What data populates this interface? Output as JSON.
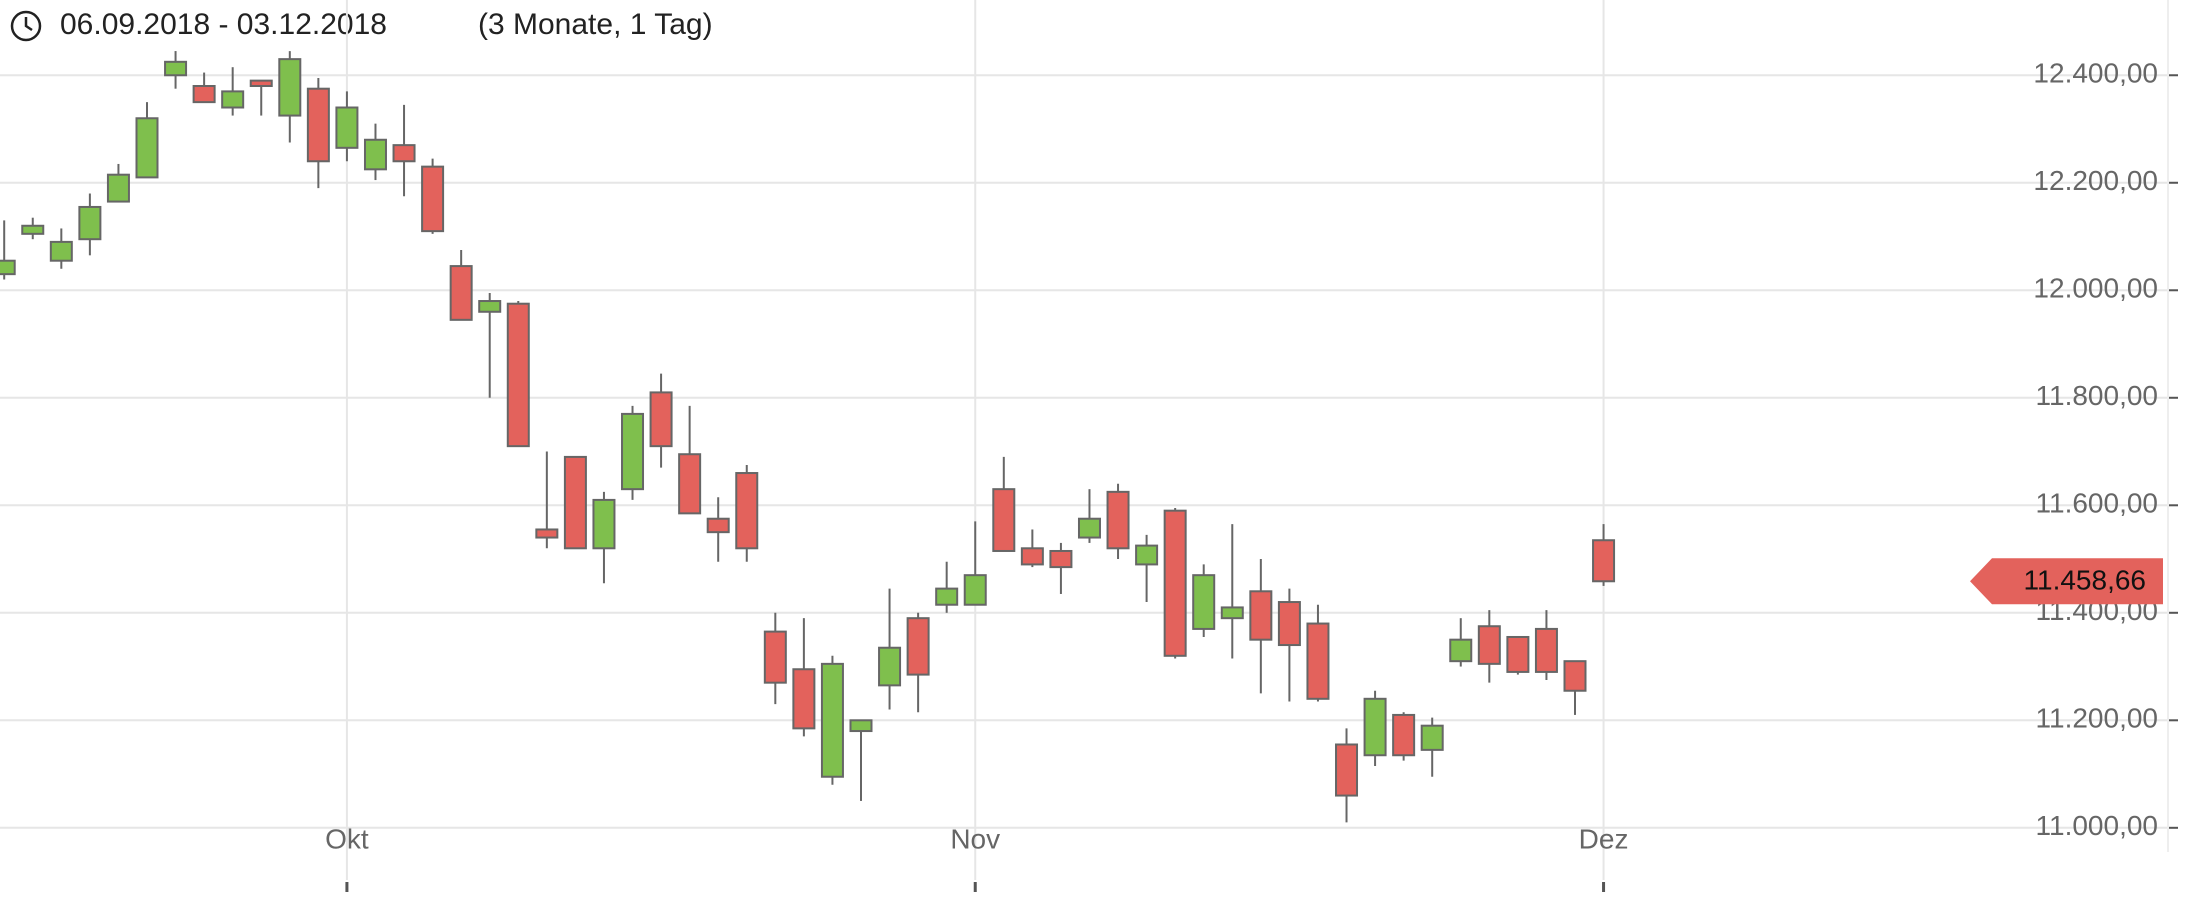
{
  "chart_data": {
    "type": "candlestick",
    "date_range": "06.09.2018 - 03.12.2018",
    "period": "(3 Monate, 1 Tag)",
    "categories": [
      null,
      null,
      null,
      null,
      null,
      null,
      null,
      null,
      null,
      null,
      null,
      null,
      "Okt",
      null,
      null,
      null,
      null,
      null,
      null,
      null,
      null,
      null,
      null,
      null,
      null,
      null,
      null,
      null,
      null,
      null,
      null,
      null,
      null,
      null,
      "Nov",
      null,
      null,
      null,
      null,
      null,
      null,
      null,
      null,
      null,
      null,
      null,
      null,
      null,
      null,
      null,
      null,
      null,
      null,
      null,
      null,
      null,
      "Dez"
    ],
    "open": [
      12030,
      12105,
      12055,
      12095,
      12165,
      12210,
      12400,
      12380,
      12340,
      12390,
      12325,
      12375,
      12265,
      12225,
      12270,
      12230,
      12045,
      11960,
      11975,
      11555,
      11690,
      11520,
      11630,
      11810,
      11695,
      11575,
      11660,
      11365,
      11295,
      11095,
      11180,
      11265,
      11390,
      11415,
      11415,
      11630,
      11520,
      11515,
      11540,
      11625,
      11490,
      11590,
      11370,
      11390,
      11440,
      11420,
      11380,
      11155,
      11135,
      11210,
      11145,
      11310,
      11375,
      11355,
      11370,
      11310,
      11535
    ],
    "high": [
      12130,
      12135,
      12115,
      12180,
      12235,
      12350,
      12445,
      12405,
      12415,
      12390,
      12445,
      12395,
      12370,
      12310,
      12345,
      12245,
      12075,
      11995,
      11980,
      11700,
      11690,
      11625,
      11785,
      11845,
      11785,
      11615,
      11675,
      11400,
      11390,
      11320,
      11200,
      11445,
      11400,
      11495,
      11570,
      11690,
      11555,
      11530,
      11630,
      11640,
      11545,
      11595,
      11490,
      11565,
      11500,
      11445,
      11415,
      11185,
      11255,
      11215,
      11205,
      11390,
      11405,
      11355,
      11405,
      11310,
      11565
    ],
    "low": [
      12020,
      12095,
      12040,
      12065,
      12165,
      12210,
      12375,
      12350,
      12325,
      12325,
      12275,
      12190,
      12240,
      12205,
      12175,
      12105,
      11945,
      11800,
      11710,
      11520,
      11520,
      11455,
      11610,
      11670,
      11585,
      11495,
      11495,
      11230,
      11170,
      11080,
      11050,
      11220,
      11215,
      11400,
      11415,
      11515,
      11485,
      11435,
      11530,
      11500,
      11420,
      11315,
      11355,
      11315,
      11250,
      11235,
      11235,
      11010,
      11115,
      11125,
      11095,
      11300,
      11270,
      11285,
      11275,
      11210,
      11450
    ],
    "close": [
      12055,
      12120,
      12090,
      12155,
      12215,
      12320,
      12425,
      12350,
      12370,
      12380,
      12430,
      12240,
      12340,
      12280,
      12240,
      12110,
      11945,
      11980,
      11710,
      11540,
      11520,
      11610,
      11770,
      11710,
      11585,
      11550,
      11520,
      11270,
      11185,
      11305,
      11200,
      11335,
      11285,
      11445,
      11470,
      11515,
      11490,
      11485,
      11575,
      11520,
      11525,
      11320,
      11470,
      11410,
      11350,
      11340,
      11240,
      11060,
      11240,
      11135,
      11190,
      11350,
      11305,
      11290,
      11290,
      11255,
      11458.66
    ],
    "up_color": "#7fbf4d",
    "down_color": "#e3625c",
    "last_price": {
      "value": 11458.66,
      "label": "11.458,66"
    },
    "ylim": [
      10955,
      12540
    ],
    "yticks": [
      {
        "value": 11000,
        "label": "11.000,00"
      },
      {
        "value": 11200,
        "label": "11.200,00"
      },
      {
        "value": 11400,
        "label": "11.400,00"
      },
      {
        "value": 11600,
        "label": "11.600,00"
      },
      {
        "value": 11800,
        "label": "11.800,00"
      },
      {
        "value": 12000,
        "label": "12.000,00"
      },
      {
        "value": 12200,
        "label": "12.200,00"
      },
      {
        "value": 12400,
        "label": "12.400,00"
      }
    ],
    "grid": true
  }
}
